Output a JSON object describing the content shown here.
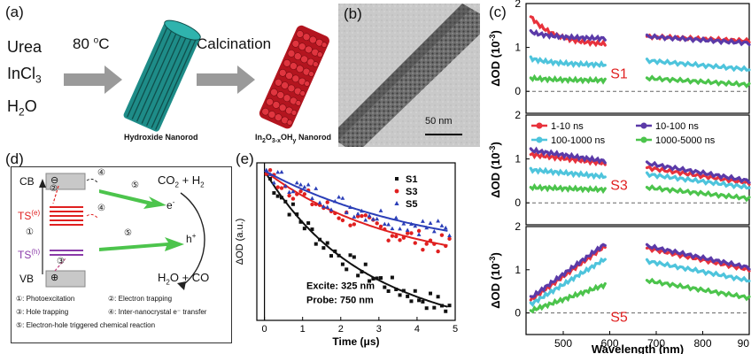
{
  "panel_a": {
    "label": "(a)",
    "reagents": [
      "Urea",
      "InCl",
      "H",
      "O"
    ],
    "reagent_subs": [
      "3",
      "2"
    ],
    "step1": "80 ",
    "step1_deg": "o",
    "step1_unit": "C",
    "step2": "Calcination",
    "product1": "Hydroxide Nanorod",
    "product2_parts": [
      "In",
      "2",
      "O",
      "3-x",
      "OH",
      "y",
      " Nanorod"
    ],
    "colors": {
      "hydroxide": "#2aa6a0",
      "oxide": "#c8202a",
      "arrow": "#9a9a9a"
    }
  },
  "panel_b": {
    "label": "(b)",
    "scalebar": "50 nm"
  },
  "panel_c": {
    "label": "(c)",
    "ylabel": "ΔOD (10",
    "ylabel_exp": "-3",
    "ylabel_end": ")",
    "xlabel": "Wavelength (nm)",
    "xticks": [
      "500",
      "600",
      "700",
      "800",
      "90"
    ],
    "yticks": [
      "0",
      "1",
      "2"
    ],
    "legend": [
      "1-10 ns",
      "10-100 ns",
      "100-1000 ns",
      "1000-5000 ns"
    ],
    "colors": [
      "#e8323c",
      "#5b3aa8",
      "#4ec4dc",
      "#4cc44c"
    ],
    "samples": [
      "S1",
      "S3",
      "S5"
    ]
  },
  "panel_d": {
    "label": "(d)",
    "cb": "CB",
    "vb": "VB",
    "te": "TS",
    "te_sup": "(e)",
    "th": "TS",
    "th_sup": "(h)",
    "reaction_top": "CO",
    "reaction_top_sub": "2",
    "reaction_top_end": " + H",
    "reaction_top_sub2": "2",
    "reaction_bottom": "H",
    "reaction_bottom_sub": "2",
    "reaction_bottom_end": "O + CO",
    "electron": "e",
    "electron_sup": "-",
    "hole": "h",
    "hole_sup": "+",
    "markers": [
      "①",
      "②",
      "③",
      "④",
      "⑤"
    ],
    "legend_lines": [
      [
        "①: Photoexcitation",
        "②: Electron trapping"
      ],
      [
        "③: Hole trapping",
        "④: Inter-nanocrystal e⁻ transfer"
      ],
      [
        "⑤: Electron-hole triggered chemical reaction"
      ]
    ]
  },
  "panel_e": {
    "label": "(e)",
    "ylabel": "ΔOD (a.u.)",
    "xlabel": "Time (μs)",
    "xticks": [
      "0",
      "1",
      "2",
      "3",
      "4",
      "5"
    ],
    "legend": [
      "S1",
      "S3",
      "S5"
    ],
    "colors": [
      "#111111",
      "#e02020",
      "#2b3fb8"
    ],
    "excite": "Excite: 325 nm",
    "probe": "Probe: 750 nm"
  }
}
